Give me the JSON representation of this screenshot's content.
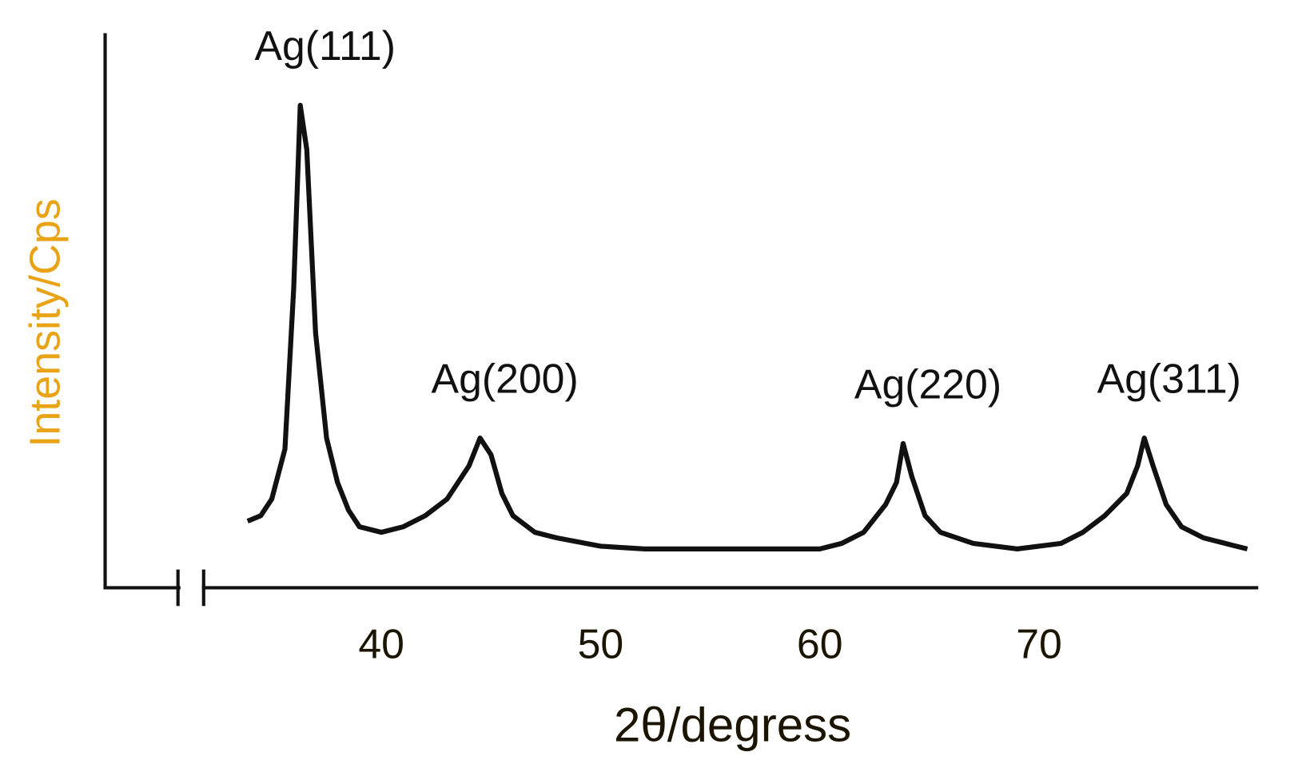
{
  "chart_data": {
    "type": "line",
    "x_label": "2θ/degress",
    "y_label": "Intensity/Cps",
    "xlim": [
      27.4,
      80
    ],
    "xticks": [
      40,
      50,
      60,
      70
    ],
    "ylim": [
      0,
      100
    ],
    "color": "#111111",
    "x": [
      33.9,
      34.5,
      35,
      35.6,
      36.0,
      36.3,
      36.6,
      37,
      37.5,
      38,
      38.5,
      39,
      40,
      41,
      42,
      43,
      44,
      44.5,
      45,
      45.5,
      46,
      47,
      48,
      50,
      52,
      54,
      56,
      58,
      60,
      61,
      62,
      63,
      63.5,
      63.8,
      64.2,
      64.8,
      65.5,
      67,
      69,
      71,
      72,
      73,
      74,
      74.5,
      74.8,
      75.2,
      75.8,
      76.5,
      77.5,
      79,
      79.5
    ],
    "values": [
      12,
      13,
      16,
      25,
      54,
      87,
      79,
      46,
      27,
      19,
      14,
      11,
      10,
      11,
      13,
      16,
      22,
      27,
      24,
      17,
      13,
      10,
      9,
      7.5,
      7,
      7,
      7,
      7,
      7,
      8,
      10,
      15,
      19,
      26,
      20,
      13,
      10,
      8,
      7,
      8,
      10,
      13,
      17,
      22,
      27,
      22,
      15,
      11,
      9,
      7.5,
      7
    ],
    "annotations": [
      {
        "text": "Ag(111)",
        "x": 36.3
      },
      {
        "text": "Ag(200)",
        "x": 44.5
      },
      {
        "text": "Ag(220)",
        "x": 63.8
      },
      {
        "text": "Ag(311)",
        "x": 74.8
      }
    ]
  }
}
